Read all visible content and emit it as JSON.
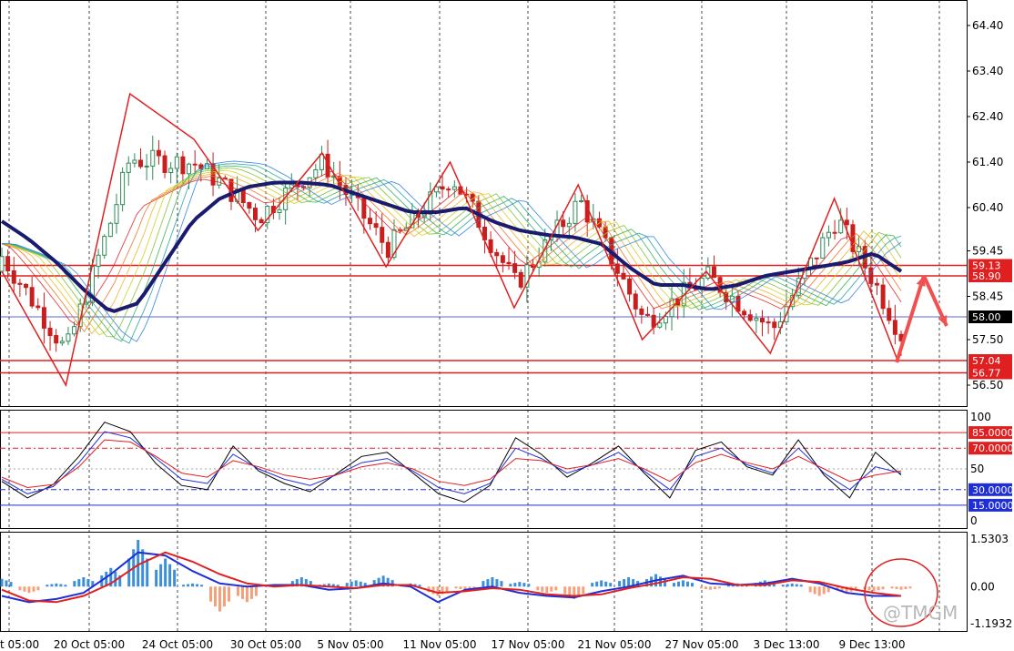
{
  "chart_data": [
    {
      "type": "candlestick",
      "panel": "price",
      "title": "",
      "y_ticks": [
        "64.40",
        "63.40",
        "62.40",
        "61.40",
        "60.40",
        "59.45",
        "58.45",
        "57.50",
        "56.50"
      ],
      "ylim": [
        56.2,
        64.8
      ],
      "x_ticks": [
        "t 05:00",
        "20 Oct 05:00",
        "24 Oct 05:00",
        "30 Oct 05:00",
        "5 Nov 05:00",
        "11 Nov 05:00",
        "17 Nov 05:00",
        "21 Nov 05:00",
        "27 Nov 05:00",
        "3 Dec 13:00",
        "9 Dec 13:00"
      ],
      "current_price": {
        "label": "58.00",
        "value": 58.0,
        "color": "#2233cc"
      },
      "levels": [
        {
          "label": "59.13",
          "value": 59.13,
          "color": "#e02020"
        },
        {
          "label": "58.90",
          "value": 58.9,
          "color": "#e02020"
        },
        {
          "label": "57.04",
          "value": 57.04,
          "color": "#e02020"
        },
        {
          "label": "56.77",
          "value": 56.77,
          "color": "#e02020"
        }
      ],
      "moving_average_close_approx": [
        60.1,
        59.7,
        59.2,
        58.6,
        58.1,
        58.3,
        59.2,
        60.1,
        60.6,
        60.85,
        60.95,
        60.95,
        60.9,
        60.7,
        60.5,
        60.3,
        60.3,
        60.4,
        60.1,
        59.9,
        59.8,
        59.75,
        59.6,
        59.1,
        58.7,
        58.7,
        58.6,
        58.7,
        58.9,
        59.0,
        59.1,
        59.2,
        59.4,
        59.0
      ],
      "zigzag_approx": [
        59.0,
        56.5,
        62.9,
        61.9,
        59.9,
        61.6,
        59.1,
        61.4,
        58.2,
        60.9,
        57.5,
        59.0,
        57.2,
        60.6,
        57.0
      ],
      "arrow_projection_approx": [
        57.0,
        58.9,
        57.8
      ],
      "zigzag_color": "#e02020",
      "ma_color": "#1a1a6e",
      "bull_color": "#2e8b57",
      "bear_color": "#c81e1e"
    },
    {
      "type": "line",
      "panel": "stochastic",
      "y_ticks": [
        "100",
        "50",
        "0"
      ],
      "ylim": [
        0,
        100
      ],
      "levels": [
        {
          "label": "85.0000",
          "value": 85,
          "color": "#e02020"
        },
        {
          "label": "70.0000",
          "value": 70,
          "color": "#e02020"
        },
        {
          "label": "30.0000",
          "value": 30,
          "color": "#1f2fd6"
        },
        {
          "label": "15.0000",
          "value": 15,
          "color": "#1f2fd6"
        }
      ],
      "series": [
        {
          "key": "main",
          "color": "#000000",
          "values": [
            38,
            22,
            35,
            62,
            95,
            86,
            55,
            34,
            30,
            72,
            48,
            36,
            28,
            45,
            62,
            66,
            46,
            26,
            18,
            34,
            80,
            64,
            42,
            56,
            72,
            46,
            22,
            68,
            76,
            52,
            44,
            78,
            44,
            22,
            66,
            44
          ]
        },
        {
          "key": "signal",
          "color": "#1f2fd6",
          "values": [
            40,
            26,
            33,
            56,
            86,
            80,
            60,
            40,
            36,
            64,
            50,
            40,
            34,
            44,
            56,
            60,
            48,
            32,
            26,
            36,
            70,
            60,
            46,
            54,
            66,
            48,
            30,
            62,
            70,
            54,
            46,
            70,
            46,
            30,
            52,
            46
          ]
        },
        {
          "key": "slow",
          "color": "#e02020",
          "values": [
            42,
            32,
            35,
            52,
            78,
            76,
            62,
            46,
            42,
            58,
            52,
            44,
            40,
            44,
            52,
            56,
            50,
            38,
            34,
            40,
            60,
            58,
            50,
            54,
            60,
            50,
            38,
            56,
            64,
            56,
            50,
            62,
            50,
            38,
            44,
            48
          ]
        }
      ]
    },
    {
      "type": "bar",
      "panel": "oscillator",
      "y_ticks": [
        "1.5303",
        "0.00",
        "-1.1932"
      ],
      "ylim": [
        -1.1932,
        1.5303
      ],
      "series": [
        {
          "key": "histogram_approx",
          "positive_color": "#3b8fd9",
          "negative_color": "#f4a07a",
          "values": [
            0.25,
            -0.2,
            0.1,
            0.3,
            0.6,
            1.5,
            0.9,
            0.1,
            -0.8,
            -0.5,
            0.0,
            0.3,
            0.1,
            0.2,
            0.35,
            0.1,
            -0.3,
            -0.1,
            0.3,
            0.15,
            -0.2,
            -0.4,
            0.2,
            0.3,
            0.4,
            0.2,
            -0.1,
            0.1,
            0.2,
            0.1,
            -0.3,
            -0.2,
            -0.15,
            -0.1
          ]
        },
        {
          "key": "macd_approx",
          "color": "#1f2fd6",
          "values": [
            -0.3,
            -0.5,
            -0.4,
            -0.2,
            0.4,
            1.1,
            1.0,
            0.5,
            0.1,
            0.0,
            0.05,
            0.05,
            -0.1,
            -0.05,
            0.1,
            0.0,
            -0.5,
            -0.1,
            0.0,
            -0.2,
            -0.3,
            -0.35,
            -0.15,
            0.0,
            0.2,
            0.35,
            0.1,
            0.05,
            0.1,
            0.25,
            0.1,
            -0.2,
            -0.3,
            -0.3
          ]
        },
        {
          "key": "signal_approx",
          "color": "#e02020",
          "values": [
            -0.1,
            -0.45,
            -0.5,
            -0.3,
            0.1,
            0.7,
            1.1,
            0.8,
            0.4,
            0.1,
            0.0,
            0.05,
            0.0,
            -0.05,
            0.05,
            0.05,
            -0.2,
            -0.15,
            -0.05,
            -0.1,
            -0.25,
            -0.3,
            -0.25,
            -0.05,
            0.1,
            0.3,
            0.25,
            0.05,
            0.05,
            0.2,
            0.15,
            -0.05,
            -0.2,
            -0.3
          ]
        }
      ]
    }
  ],
  "watermark": "@TMGM"
}
